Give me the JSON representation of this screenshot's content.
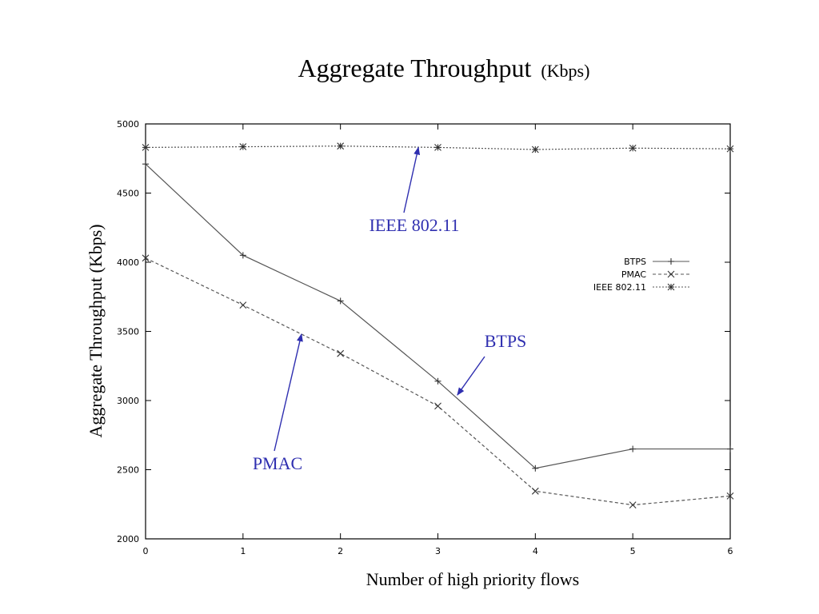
{
  "colors": {
    "annotation": "#2f2fb0",
    "series_line": "#555555",
    "frame": "#000000"
  },
  "chart_data": {
    "type": "line",
    "title": "Aggregate Throughput",
    "title_unit": "(Kbps)",
    "xlabel": "Number of high priority flows",
    "ylabel": "Aggregate Throughput (Kbps)",
    "xlim": [
      0,
      6
    ],
    "ylim": [
      2000,
      5000
    ],
    "xticks": [
      0,
      1,
      2,
      3,
      4,
      5,
      6
    ],
    "yticks": [
      2000,
      2500,
      3000,
      3500,
      4000,
      4500,
      5000
    ],
    "grid": false,
    "legend": "right",
    "x": [
      0,
      1,
      2,
      3,
      4,
      5,
      6
    ],
    "series": [
      {
        "name": "BTPS",
        "marker": "plus",
        "dash": "solid",
        "values": [
          4710,
          4050,
          3720,
          3140,
          2510,
          2650,
          2650
        ]
      },
      {
        "name": "PMAC",
        "marker": "x",
        "dash": "dashed",
        "values": [
          4030,
          3690,
          3340,
          2960,
          2345,
          2245,
          2310
        ]
      },
      {
        "name": "IEEE 802.11",
        "marker": "star",
        "dash": "dotted",
        "values": [
          4830,
          4835,
          4840,
          4830,
          4815,
          4825,
          4820
        ]
      }
    ],
    "annotations": [
      {
        "text": "IEEE 802.11",
        "series": "IEEE 802.11",
        "target_x": 2.8,
        "target_y": 4830
      },
      {
        "text": "BTPS",
        "series": "BTPS",
        "target_x": 3.2,
        "target_y": 3040
      },
      {
        "text": "PMAC",
        "series": "PMAC",
        "target_x": 1.6,
        "target_y": 3480
      }
    ]
  }
}
